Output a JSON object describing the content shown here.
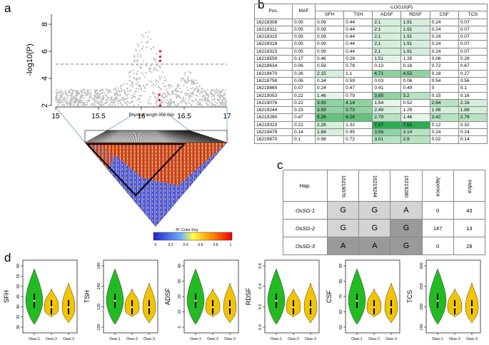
{
  "panels": {
    "a": "a",
    "b": "b",
    "c": "c",
    "d": "d"
  },
  "panel_a": {
    "ylabel": "-log10(P)",
    "yticks": [
      "2",
      "4",
      "6",
      "8"
    ],
    "xticks": [
      "15",
      "15.5",
      "16",
      "16.5",
      "17"
    ],
    "phys_length": "Physical length 958.6kb",
    "colorkey_title": "R² Color Key",
    "colorkey_ticks": [
      "0",
      "0.2",
      "0.4",
      "0.6",
      "0.8",
      "1"
    ]
  },
  "table_b": {
    "header_group": "-LOG10(P)",
    "columns": [
      "Pos.",
      "MAF",
      "SFH",
      "TSH",
      "ADSF",
      "RDSF",
      "CSF",
      "TCS"
    ],
    "rows": [
      [
        "16218308",
        "0.05",
        "0.09",
        "0.44",
        "2.1",
        "1.91",
        "0.24",
        "0.07"
      ],
      [
        "16218311",
        "0.05",
        "0.09",
        "0.44",
        "2.1",
        "1.91",
        "0.24",
        "0.07"
      ],
      [
        "16218315",
        "0.05",
        "0.09",
        "0.44",
        "2.1",
        "1.91",
        "0.24",
        "0.07"
      ],
      [
        "16218318",
        "0.05",
        "0.09",
        "0.44",
        "2.1",
        "1.91",
        "0.24",
        "0.07"
      ],
      [
        "16218323",
        "0.05",
        "0.09",
        "0.44",
        "2.1",
        "1.91",
        "0.24",
        "0.07"
      ],
      [
        "16218559",
        "0.17",
        "0.46",
        "0.28",
        "1.51",
        "1.35",
        "0.06",
        "0.28"
      ],
      [
        "16218634",
        "0.06",
        "0.59",
        "0.78",
        "0.13",
        "0.16",
        "0.72",
        "0.67"
      ],
      [
        "16218670",
        "0.26",
        "2.15",
        "1.1",
        "4.71",
        "4.52",
        "0.18",
        "0.27"
      ],
      [
        "16218758",
        "0.06",
        "0.34",
        "0.59",
        "0.03",
        "0.06",
        "0.54",
        "0.56"
      ],
      [
        "16218869",
        "0.07",
        "0.24",
        "0.47",
        "0.41",
        "0.49",
        "0",
        "0.1"
      ],
      [
        "16219053",
        "0.22",
        "1.46",
        "0.79",
        "3.85",
        "3.2",
        "0.15",
        "0.16"
      ],
      [
        "16219076",
        "0.22",
        "3.93",
        "4.14",
        "1.54",
        "0.52",
        "2.64",
        "2.16"
      ],
      [
        "16219244",
        "0.23",
        "3.59",
        "3.73",
        "2.49",
        "1.29",
        "1.98",
        "1.89"
      ],
      [
        "16219280",
        "0.47",
        "5.28",
        "6.26",
        "2.79",
        "1.46",
        "3.42",
        "2.76"
      ],
      [
        "16219323",
        "0.21",
        "2.28",
        "1.32",
        "7.27",
        "7.52",
        "0.12",
        "0.32"
      ],
      [
        "16219479",
        "0.14",
        "1.84",
        "0.95",
        "3.56",
        "3.14",
        "0.24",
        "0.24"
      ],
      [
        "16219870",
        "0.1",
        "0.98",
        "0.72",
        "3.01",
        "2.9",
        "0.02",
        "0.14"
      ]
    ]
  },
  "table_c": {
    "header": [
      "Hap.",
      "16219076",
      "16219244",
      "16219280",
      "Japonica",
      "Indica"
    ],
    "rows": [
      [
        "OsSG-1",
        "G",
        "G",
        "A",
        "0",
        "43"
      ],
      [
        "OsSG-2",
        "G",
        "G",
        "G",
        "147",
        "13"
      ],
      [
        "OsSG-3",
        "A",
        "A",
        "G",
        "0",
        "28"
      ]
    ]
  },
  "violins": [
    {
      "ylabel": "SFH",
      "ticks": [
        "30",
        "35",
        "40",
        "45",
        "50",
        "55",
        "60"
      ],
      "xlabels": [
        "Ossc-1",
        "Ossc-2",
        "Ossc-3"
      ]
    },
    {
      "ylabel": "TSH",
      "ticks": [
        "100",
        "120",
        "140",
        "160"
      ],
      "xlabels": [
        "Ossc-1",
        "Ossc-2",
        "Ossc-3"
      ]
    },
    {
      "ylabel": "ADSF",
      "ticks": [
        "0",
        "10",
        "20",
        "30",
        "40"
      ],
      "xlabels": [
        "Ossc-1",
        "Ossc-2",
        "Ossc-3"
      ]
    },
    {
      "ylabel": "RDSF",
      "ticks": [
        "0.0",
        "0.2",
        "0.4",
        "0.6"
      ],
      "xlabels": [
        "Ossc-1",
        "Ossc-2",
        "Ossc-3"
      ]
    },
    {
      "ylabel": "CSF",
      "ticks": [
        "50",
        "60",
        "70",
        "80",
        "90"
      ],
      "xlabels": [
        "Ossc-1",
        "Ossc-2",
        "Ossc-3"
      ]
    },
    {
      "ylabel": "TCS",
      "ticks": [
        "150",
        "200",
        "250",
        "300"
      ],
      "xlabels": [
        "Ossc-1",
        "Ossc-2",
        "Ossc-3"
      ]
    }
  ]
}
